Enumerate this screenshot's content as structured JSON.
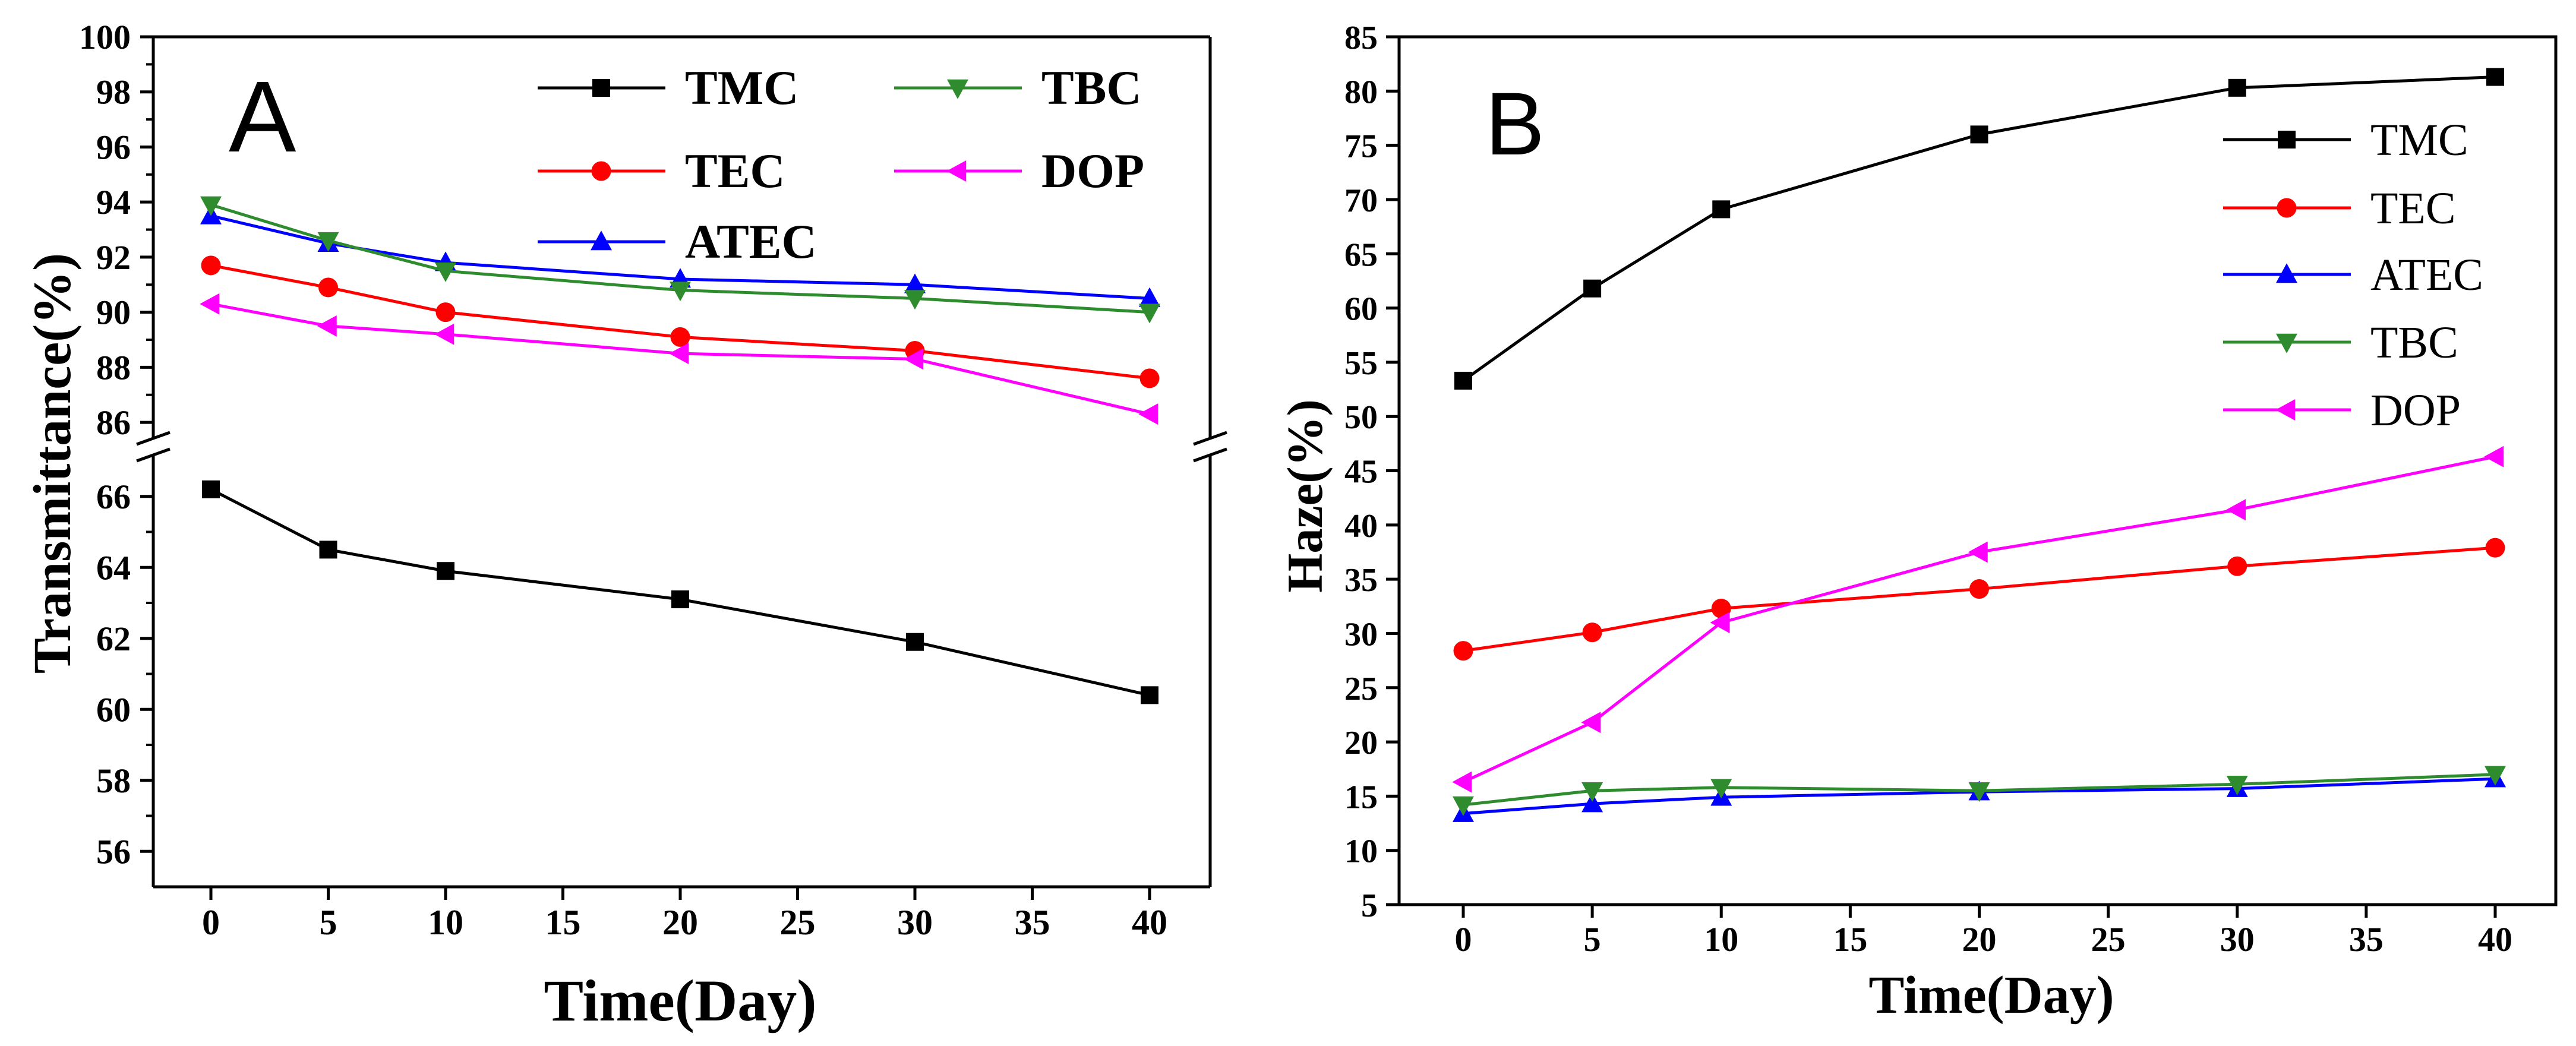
{
  "chart_data": [
    {
      "type": "line",
      "panel_label": "A",
      "xlabel": "Time(Day)",
      "ylabel": "Transmittance(%)",
      "x": [
        0,
        5,
        10,
        20,
        30,
        40
      ],
      "x_ticks": [
        "0",
        "5",
        "10",
        "15",
        "20",
        "25",
        "30",
        "35",
        "40"
      ],
      "y_ticks_upper": [
        "86",
        "88",
        "90",
        "92",
        "94",
        "96",
        "98",
        "100"
      ],
      "y_ticks_lower": [
        "56",
        "58",
        "60",
        "62",
        "64",
        "66"
      ],
      "axis_break": true,
      "ylim_lower": [
        55,
        67
      ],
      "ylim_upper": [
        84.6,
        100
      ],
      "legend_position": "top-right",
      "legend_bold": true,
      "series": [
        {
          "name": "TMC",
          "color": "#000000",
          "marker": "square",
          "values": [
            66.2,
            64.5,
            63.9,
            63.1,
            61.9,
            60.4
          ]
        },
        {
          "name": "TEC",
          "color": "#ff0000",
          "marker": "circle",
          "values": [
            91.7,
            90.9,
            90.0,
            89.1,
            88.6,
            87.6
          ]
        },
        {
          "name": "ATEC",
          "color": "#0000ff",
          "marker": "triangle-up",
          "values": [
            93.5,
            92.5,
            91.8,
            91.2,
            91.0,
            90.5
          ]
        },
        {
          "name": "TBC",
          "color": "#2e8b2e",
          "marker": "triangle-down",
          "values": [
            93.9,
            92.6,
            91.5,
            90.8,
            90.5,
            90.0
          ]
        },
        {
          "name": "DOP",
          "color": "#ff00ff",
          "marker": "triangle-left",
          "values": [
            90.3,
            89.5,
            89.2,
            88.5,
            88.3,
            86.3
          ]
        }
      ]
    },
    {
      "type": "line",
      "panel_label": "B",
      "xlabel": "Time(Day)",
      "ylabel": "Haze(%)",
      "x": [
        0,
        5,
        10,
        20,
        30,
        40
      ],
      "x_ticks": [
        "0",
        "5",
        "10",
        "15",
        "20",
        "25",
        "30",
        "35",
        "40"
      ],
      "y_ticks": [
        "5",
        "10",
        "15",
        "20",
        "25",
        "30",
        "35",
        "40",
        "45",
        "50",
        "55",
        "60",
        "65",
        "70",
        "75",
        "80",
        "85"
      ],
      "ylim": [
        5,
        85
      ],
      "legend_position": "top-right",
      "legend_bold": false,
      "series": [
        {
          "name": "TMC",
          "color": "#000000",
          "marker": "square",
          "values": [
            53.3,
            61.8,
            69.1,
            76.0,
            80.3,
            81.3
          ]
        },
        {
          "name": "TEC",
          "color": "#ff0000",
          "marker": "circle",
          "values": [
            28.4,
            30.1,
            32.3,
            34.1,
            36.2,
            37.9
          ]
        },
        {
          "name": "ATEC",
          "color": "#0000ff",
          "marker": "triangle-up",
          "values": [
            13.4,
            14.3,
            14.9,
            15.4,
            15.7,
            16.6
          ]
        },
        {
          "name": "TBC",
          "color": "#2e8b2e",
          "marker": "triangle-down",
          "values": [
            14.2,
            15.5,
            15.8,
            15.5,
            16.1,
            17.0
          ]
        },
        {
          "name": "DOP",
          "color": "#ff00ff",
          "marker": "triangle-left",
          "values": [
            16.3,
            21.8,
            31.0,
            37.5,
            41.4,
            46.3
          ]
        }
      ]
    }
  ]
}
